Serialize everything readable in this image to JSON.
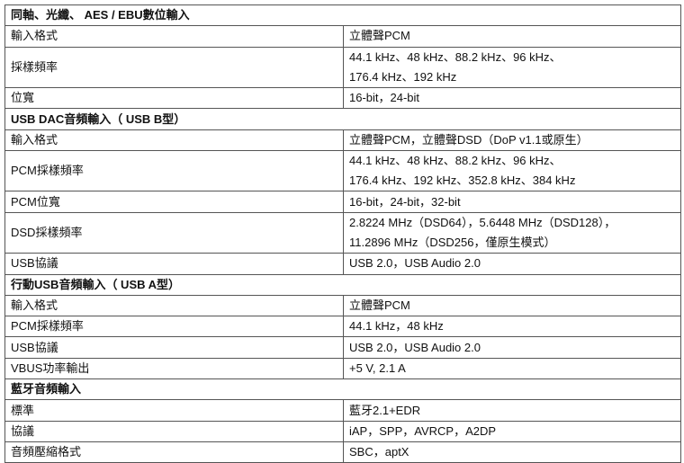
{
  "sections": [
    {
      "title": "同軸、光纖、 AES / EBU數位輸入",
      "rows": [
        {
          "label": "輸入格式",
          "value": [
            "立體聲PCM"
          ]
        },
        {
          "label": "採樣頻率",
          "value": [
            "44.1 kHz、48 kHz、88.2 kHz、96 kHz、",
            "176.4 kHz、192 kHz"
          ]
        },
        {
          "label": "位寬",
          "value": [
            "16-bit，24-bit"
          ]
        }
      ]
    },
    {
      "title": "USB DAC音頻輸入（ USB B型）",
      "rows": [
        {
          "label": "輸入格式",
          "value": [
            "立體聲PCM，立體聲DSD（DoP v1.1或原生）"
          ]
        },
        {
          "label": "PCM採樣頻率",
          "value": [
            "44.1 kHz、48 kHz、88.2 kHz、96 kHz、",
            "176.4 kHz、192 kHz、352.8 kHz、384 kHz"
          ]
        },
        {
          "label": "PCM位寬",
          "value": [
            "16-bit，24-bit，32-bit"
          ]
        },
        {
          "label": "DSD採樣頻率",
          "value": [
            "2.8224 MHz（DSD64），5.6448 MHz（DSD128），",
            "11.2896 MHz（DSD256，僅原生模式）"
          ]
        },
        {
          "label": "USB協議",
          "value": [
            "USB 2.0，USB Audio 2.0"
          ]
        }
      ]
    },
    {
      "title": "行動USB音頻輸入（ USB A型）",
      "rows": [
        {
          "label": "輸入格式",
          "value": [
            "立體聲PCM"
          ]
        },
        {
          "label": "PCM採樣頻率",
          "value": [
            "44.1 kHz，48 kHz"
          ]
        },
        {
          "label": "USB協議",
          "value": [
            "USB 2.0，USB Audio 2.0"
          ]
        },
        {
          "label": "VBUS功率輸出",
          "value": [
            "+5 V, 2.1 A"
          ]
        }
      ]
    },
    {
      "title": "藍牙音頻輸入",
      "rows": [
        {
          "label": "標準",
          "value": [
            "藍牙2.1+EDR"
          ]
        },
        {
          "label": "協議",
          "value": [
            "iAP，SPP，AVRCP，A2DP"
          ]
        },
        {
          "label": "音頻壓縮格式",
          "value": [
            "SBC，aptX"
          ]
        }
      ]
    }
  ]
}
